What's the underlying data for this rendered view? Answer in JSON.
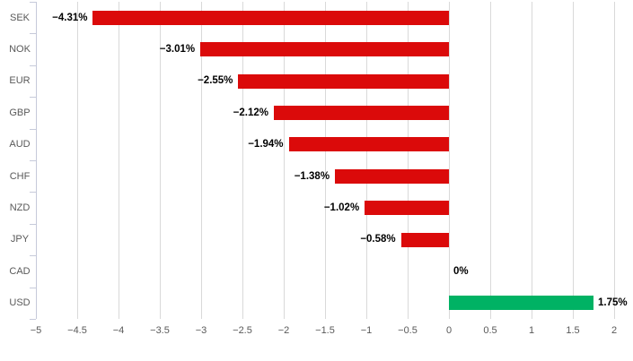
{
  "chart_data": {
    "type": "bar",
    "orientation": "horizontal",
    "title": "",
    "xlabel": "",
    "ylabel": "",
    "categories": [
      "SEK",
      "NOK",
      "EUR",
      "GBP",
      "AUD",
      "CHF",
      "NZD",
      "JPY",
      "CAD",
      "USD"
    ],
    "values": [
      -4.31,
      -3.01,
      -2.55,
      -2.12,
      -1.94,
      -1.38,
      -1.02,
      -0.58,
      0,
      1.75
    ],
    "value_labels": [
      "−4.31%",
      "−3.01%",
      "−2.55%",
      "−2.12%",
      "−1.94%",
      "−1.38%",
      "−1.02%",
      "−0.58%",
      "0%",
      "1.75%"
    ],
    "xlim": [
      -5,
      2
    ],
    "xticks": [
      -5,
      -4.5,
      -4,
      -3.5,
      -3,
      -2.5,
      -2,
      -1.5,
      -1,
      -0.5,
      0,
      0.5,
      1,
      1.5,
      2
    ],
    "xtick_labels": [
      "−5",
      "−4.5",
      "−4",
      "−3.5",
      "−3",
      "−2.5",
      "−2",
      "−1.5",
      "−1",
      "−0.5",
      "0",
      "0.5",
      "1",
      "1.5",
      "2"
    ],
    "grid": true,
    "legend": "none"
  },
  "style": {
    "negative_bar_color": "#db0a0a",
    "positive_bar_color": "#00b264",
    "grid_color": "#d9d9d9",
    "axis_color": "#c6cada",
    "tick_label_color": "#595959",
    "value_label_color": "#000000",
    "background": "#ffffff"
  }
}
